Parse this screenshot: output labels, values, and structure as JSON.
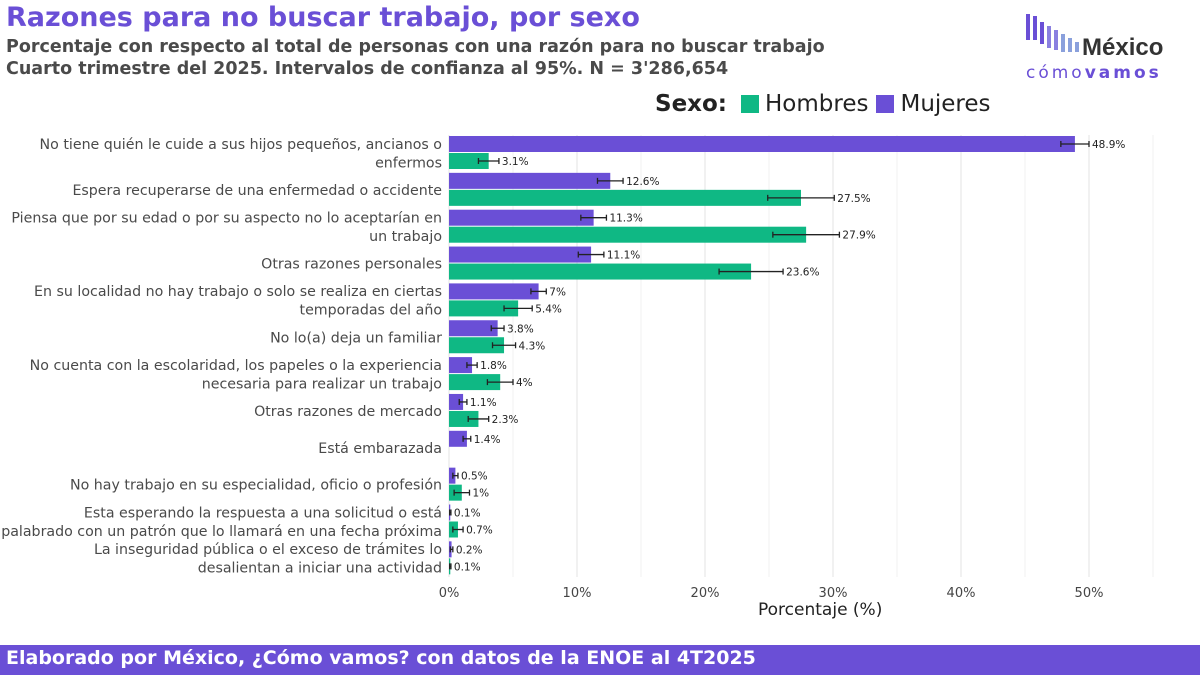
{
  "header": {
    "title": "Razones para no buscar trabajo, por sexo",
    "subtitle1": "Porcentaje con respecto al total de personas con una razón para no buscar trabajo",
    "subtitle2": "Cuarto trimestre del 2025. Intervalos de confianza al 95%. N = 3'286,654"
  },
  "logo": {
    "line1": "México",
    "line2a": "cómo",
    "line2b": "vamos",
    "colors": [
      "#6a4fd6",
      "#7b8fd0",
      "#333333"
    ]
  },
  "legend": {
    "title": "Sexo:",
    "items": [
      "Hombres",
      "Mujeres"
    ]
  },
  "colors": {
    "Hombres": "#0fb884",
    "Mujeres": "#6a4fd6",
    "grid": "#e6e6e6",
    "accent": "#6a4fd6"
  },
  "footer": {
    "text": "Elaborado por México, ¿Cómo vamos? con datos de la ENOE al 4T2025"
  },
  "chart_data": {
    "type": "bar",
    "orientation": "horizontal",
    "title": "Razones para no buscar trabajo, por sexo",
    "xlabel": "Porcentaje (%)",
    "xlim": [
      0,
      55
    ],
    "xticks": [
      0,
      10,
      20,
      30,
      40,
      50
    ],
    "xtick_labels": [
      "0%",
      "10%",
      "20%",
      "30%",
      "40%",
      "50%"
    ],
    "grid": true,
    "legend_position": "top-right",
    "categories": [
      [
        "No tiene quién le cuide a sus hijos pequeños, ancianos o",
        "enfermos"
      ],
      [
        "Espera recuperarse de una enfermedad o accidente"
      ],
      [
        "Piensa que por su edad o por su aspecto no lo aceptarían en",
        "un trabajo"
      ],
      [
        "Otras razones personales"
      ],
      [
        "En su localidad no hay trabajo o solo se realiza en ciertas",
        "temporadas del año"
      ],
      [
        "No lo(a) deja un familiar"
      ],
      [
        "No cuenta con la escolaridad, los papeles o la experiencia",
        "necesaria para realizar un trabajo"
      ],
      [
        "Otras razones de mercado"
      ],
      [
        "Está embarazada"
      ],
      [
        "No hay trabajo en su especialidad, oficio o profesión"
      ],
      [
        "Esta esperando la respuesta a una solicitud o está",
        "apalabrado con un patrón que lo llamará en una fecha próxima"
      ],
      [
        "La inseguridad pública o el exceso de trámites lo",
        "desalientan a iniciar una actividad"
      ]
    ],
    "series": [
      {
        "name": "Mujeres",
        "values": [
          48.9,
          12.6,
          11.3,
          11.1,
          7.0,
          3.8,
          1.8,
          1.1,
          1.4,
          0.5,
          0.1,
          0.2
        ],
        "labels": [
          "48.9%",
          "12.6%",
          "11.3%",
          "11.1%",
          "7%",
          "3.8%",
          "1.8%",
          "1.1%",
          "1.4%",
          "0.5%",
          "0.1%",
          "0.2%"
        ],
        "ci_low": [
          47.8,
          11.6,
          10.3,
          10.1,
          6.4,
          3.3,
          1.4,
          0.8,
          1.1,
          0.3,
          0.05,
          0.1
        ],
        "ci_high": [
          50.0,
          13.6,
          12.3,
          12.1,
          7.6,
          4.3,
          2.2,
          1.4,
          1.7,
          0.7,
          0.15,
          0.3
        ]
      },
      {
        "name": "Hombres",
        "values": [
          3.1,
          27.5,
          27.9,
          23.6,
          5.4,
          4.3,
          4.0,
          2.3,
          null,
          1.0,
          0.7,
          0.1
        ],
        "labels": [
          "3.1%",
          "27.5%",
          "27.9%",
          "23.6%",
          "5.4%",
          "4.3%",
          "4%",
          "2.3%",
          "",
          "1%",
          "0.7%",
          "0.1%"
        ],
        "ci_low": [
          2.3,
          24.9,
          25.3,
          21.1,
          4.3,
          3.4,
          3.0,
          1.5,
          null,
          0.4,
          0.3,
          0.05
        ],
        "ci_high": [
          3.9,
          30.1,
          30.5,
          26.1,
          6.5,
          5.2,
          5.0,
          3.1,
          null,
          1.6,
          1.1,
          0.15
        ]
      }
    ]
  }
}
